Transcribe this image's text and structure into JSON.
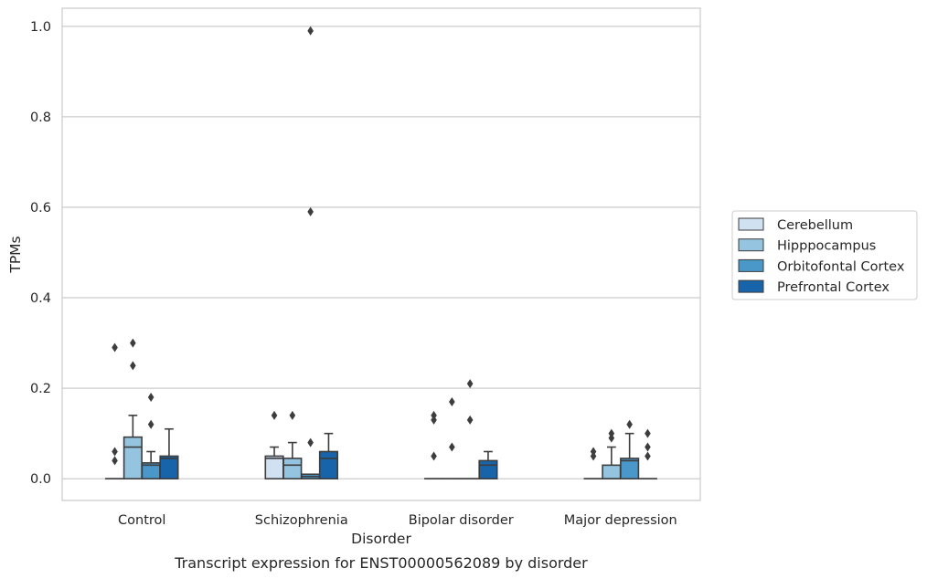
{
  "caption": "Transcript expression for ENST00000562089 by disorder",
  "chart_data": {
    "type": "box",
    "xlabel": "Disorder",
    "ylabel": "TPMs",
    "ylim": [
      -0.048,
      1.04
    ],
    "yticks": [
      0.0,
      0.2,
      0.4,
      0.6,
      0.8,
      1.0
    ],
    "ytick_labels": [
      "0.0",
      "0.2",
      "0.4",
      "0.6",
      "0.8",
      "1.0"
    ],
    "grid": "horizontal",
    "legend_position": "right",
    "categories": [
      "Control",
      "Schizophrenia",
      "Bipolar disorder",
      "Major depression"
    ],
    "series": [
      {
        "name": "Cerebellum",
        "color": "#d0e1f2",
        "boxes": [
          {
            "q1": 0,
            "median": 0,
            "q3": 0,
            "whislo": 0,
            "whishi": 0,
            "fliers": [
              0.29,
              0.06,
              0.04
            ]
          },
          {
            "q1": 0,
            "median": 0.045,
            "q3": 0.05,
            "whislo": 0,
            "whishi": 0.07,
            "fliers": [
              0.14
            ]
          },
          {
            "q1": 0,
            "median": 0,
            "q3": 0,
            "whislo": 0,
            "whishi": 0,
            "fliers": [
              0.14,
              0.13,
              0.05
            ]
          },
          {
            "q1": 0,
            "median": 0,
            "q3": 0,
            "whislo": 0,
            "whishi": 0,
            "fliers": [
              0.06,
              0.05
            ]
          }
        ]
      },
      {
        "name": "Hipppocampus",
        "color": "#94c4df",
        "boxes": [
          {
            "q1": 0,
            "median": 0.07,
            "q3": 0.092,
            "whislo": 0,
            "whishi": 0.14,
            "fliers": [
              0.3,
              0.25
            ]
          },
          {
            "q1": 0,
            "median": 0.03,
            "q3": 0.045,
            "whislo": 0,
            "whishi": 0.08,
            "fliers": [
              0.14
            ]
          },
          {
            "q1": 0,
            "median": 0,
            "q3": 0,
            "whislo": 0,
            "whishi": 0,
            "fliers": [
              0.17,
              0.07
            ]
          },
          {
            "q1": 0,
            "median": 0,
            "q3": 0.03,
            "whislo": 0,
            "whishi": 0.07,
            "fliers": [
              0.1,
              0.09
            ]
          }
        ]
      },
      {
        "name": "Orbitofontal Cortex",
        "color": "#4a98c9",
        "boxes": [
          {
            "q1": 0,
            "median": 0.03,
            "q3": 0.035,
            "whislo": 0,
            "whishi": 0.06,
            "fliers": [
              0.18,
              0.12
            ]
          },
          {
            "q1": 0,
            "median": 0.005,
            "q3": 0.01,
            "whislo": 0,
            "whishi": 0.01,
            "fliers": [
              0.99,
              0.59,
              0.08
            ]
          },
          {
            "q1": 0,
            "median": 0,
            "q3": 0,
            "whislo": 0,
            "whishi": 0,
            "fliers": [
              0.21,
              0.13
            ]
          },
          {
            "q1": 0,
            "median": 0.04,
            "q3": 0.045,
            "whislo": 0,
            "whishi": 0.1,
            "fliers": [
              0.12
            ]
          }
        ]
      },
      {
        "name": "Prefrontal Cortex",
        "color": "#1764ab",
        "boxes": [
          {
            "q1": 0,
            "median": 0.045,
            "q3": 0.05,
            "whislo": 0,
            "whishi": 0.11,
            "fliers": []
          },
          {
            "q1": 0,
            "median": 0.045,
            "q3": 0.06,
            "whislo": 0,
            "whishi": 0.1,
            "fliers": []
          },
          {
            "q1": 0,
            "median": 0.03,
            "q3": 0.04,
            "whislo": 0,
            "whishi": 0.06,
            "fliers": []
          },
          {
            "q1": 0,
            "median": 0,
            "q3": 0,
            "whislo": 0,
            "whishi": 0,
            "fliers": [
              0.1,
              0.07,
              0.05
            ]
          }
        ]
      }
    ]
  }
}
